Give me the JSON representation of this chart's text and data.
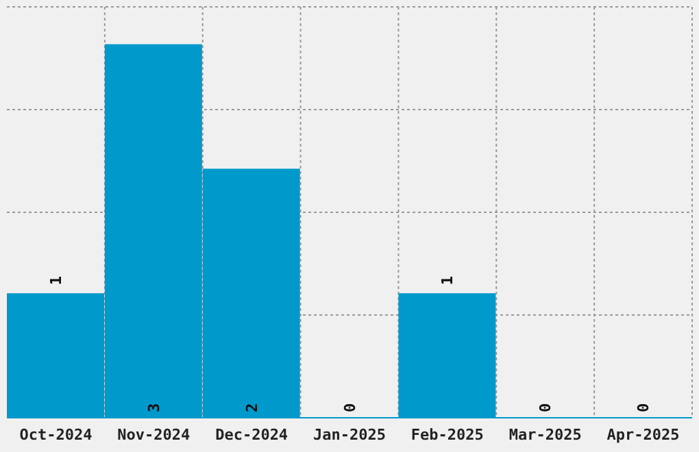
{
  "chart_data": {
    "type": "bar",
    "categories": [
      "Oct-2024",
      "Nov-2024",
      "Dec-2024",
      "Jan-2025",
      "Feb-2025",
      "Mar-2025",
      "Apr-2025"
    ],
    "values": [
      1,
      3,
      2,
      0,
      1,
      0,
      0
    ],
    "color": "#0099cc",
    "ylim": [
      0,
      3.3
    ],
    "grid": true,
    "data_labels": true,
    "tick_labels": "x"
  }
}
